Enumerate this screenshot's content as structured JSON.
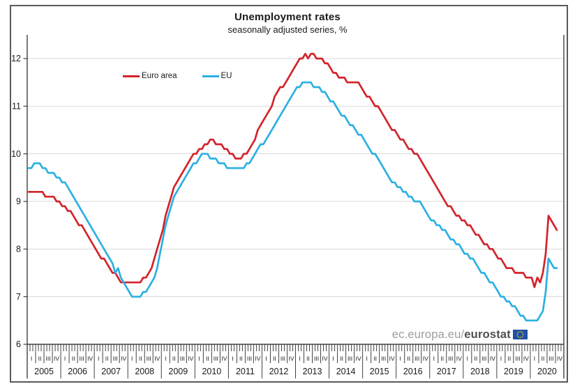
{
  "figure": {
    "title": "Unemployment rates",
    "subtitle": "seasonally adjusted series, %",
    "branding": {
      "url_prefix": "ec.europa.eu/",
      "url_bold": "eurostat",
      "flag_bg": "#1e50a5",
      "flag_stars": "#ffcc00"
    }
  },
  "chart_data": {
    "type": "line",
    "frequency": "monthly",
    "x_start": "2005-01",
    "x_end": "2020-10",
    "ylim": [
      6,
      12
    ],
    "y_ticks": [
      6,
      7,
      8,
      9,
      10,
      11,
      12
    ],
    "years": [
      "2005",
      "2006",
      "2007",
      "2008",
      "2009",
      "2010",
      "2011",
      "2012",
      "2013",
      "2014",
      "2015",
      "2016",
      "2017",
      "2018",
      "2019",
      "2020"
    ],
    "quarter_labels": [
      "I",
      "II",
      "III",
      "IV"
    ],
    "grid": true,
    "legend_position": "top-left-inside",
    "grid_color": "#d9d9d9",
    "axis_color": "#404040",
    "series": [
      {
        "name": "Euro area",
        "color": "#d2232a",
        "values": [
          9.2,
          9.2,
          9.2,
          9.2,
          9.2,
          9.2,
          9.1,
          9.1,
          9.1,
          9.1,
          9.0,
          9.0,
          8.9,
          8.9,
          8.8,
          8.8,
          8.7,
          8.6,
          8.5,
          8.5,
          8.4,
          8.3,
          8.2,
          8.1,
          8.0,
          7.9,
          7.8,
          7.8,
          7.7,
          7.6,
          7.5,
          7.5,
          7.4,
          7.3,
          7.3,
          7.3,
          7.3,
          7.3,
          7.3,
          7.3,
          7.3,
          7.4,
          7.4,
          7.5,
          7.6,
          7.8,
          8.0,
          8.2,
          8.4,
          8.7,
          8.9,
          9.1,
          9.3,
          9.4,
          9.5,
          9.6,
          9.7,
          9.8,
          9.9,
          10.0,
          10.0,
          10.1,
          10.1,
          10.2,
          10.2,
          10.3,
          10.3,
          10.2,
          10.2,
          10.2,
          10.1,
          10.1,
          10.0,
          10.0,
          9.9,
          9.9,
          9.9,
          10.0,
          10.0,
          10.1,
          10.2,
          10.3,
          10.5,
          10.6,
          10.7,
          10.8,
          10.9,
          11.0,
          11.2,
          11.3,
          11.4,
          11.4,
          11.5,
          11.6,
          11.7,
          11.8,
          11.9,
          12.0,
          12.0,
          12.1,
          12.0,
          12.1,
          12.1,
          12.0,
          12.0,
          12.0,
          11.9,
          11.9,
          11.8,
          11.7,
          11.7,
          11.6,
          11.6,
          11.6,
          11.5,
          11.5,
          11.5,
          11.5,
          11.5,
          11.4,
          11.3,
          11.2,
          11.2,
          11.1,
          11.0,
          11.0,
          10.9,
          10.8,
          10.7,
          10.6,
          10.5,
          10.5,
          10.4,
          10.3,
          10.3,
          10.2,
          10.1,
          10.1,
          10.0,
          10.0,
          9.9,
          9.8,
          9.7,
          9.6,
          9.5,
          9.4,
          9.3,
          9.2,
          9.1,
          9.0,
          8.9,
          8.9,
          8.8,
          8.7,
          8.7,
          8.6,
          8.6,
          8.5,
          8.5,
          8.4,
          8.3,
          8.3,
          8.2,
          8.1,
          8.1,
          8.0,
          8.0,
          7.9,
          7.8,
          7.8,
          7.7,
          7.6,
          7.6,
          7.6,
          7.5,
          7.5,
          7.5,
          7.5,
          7.4,
          7.4,
          7.4,
          7.2,
          7.4,
          7.3,
          7.5,
          7.9,
          8.7,
          8.6,
          8.5,
          8.4
        ]
      },
      {
        "name": "EU",
        "color": "#2bb0e2",
        "values": [
          9.7,
          9.7,
          9.8,
          9.8,
          9.8,
          9.7,
          9.7,
          9.6,
          9.6,
          9.6,
          9.5,
          9.5,
          9.4,
          9.4,
          9.3,
          9.2,
          9.1,
          9.0,
          8.9,
          8.8,
          8.7,
          8.6,
          8.5,
          8.4,
          8.3,
          8.2,
          8.1,
          8.0,
          7.9,
          7.8,
          7.7,
          7.5,
          7.6,
          7.4,
          7.3,
          7.2,
          7.1,
          7.0,
          7.0,
          7.0,
          7.0,
          7.1,
          7.1,
          7.2,
          7.3,
          7.4,
          7.6,
          7.9,
          8.2,
          8.5,
          8.7,
          8.9,
          9.1,
          9.2,
          9.3,
          9.4,
          9.5,
          9.6,
          9.7,
          9.8,
          9.8,
          9.9,
          10.0,
          10.0,
          10.0,
          9.9,
          9.9,
          9.9,
          9.8,
          9.8,
          9.8,
          9.7,
          9.7,
          9.7,
          9.7,
          9.7,
          9.7,
          9.7,
          9.8,
          9.8,
          9.9,
          10.0,
          10.1,
          10.2,
          10.2,
          10.3,
          10.4,
          10.5,
          10.6,
          10.7,
          10.8,
          10.9,
          11.0,
          11.1,
          11.2,
          11.3,
          11.4,
          11.4,
          11.5,
          11.5,
          11.5,
          11.5,
          11.4,
          11.4,
          11.4,
          11.3,
          11.3,
          11.2,
          11.1,
          11.1,
          11.0,
          10.9,
          10.8,
          10.8,
          10.7,
          10.6,
          10.6,
          10.5,
          10.4,
          10.4,
          10.3,
          10.2,
          10.1,
          10.0,
          10.0,
          9.9,
          9.8,
          9.7,
          9.6,
          9.5,
          9.4,
          9.4,
          9.3,
          9.3,
          9.2,
          9.2,
          9.1,
          9.1,
          9.0,
          9.0,
          9.0,
          8.9,
          8.8,
          8.7,
          8.6,
          8.6,
          8.5,
          8.5,
          8.4,
          8.4,
          8.3,
          8.2,
          8.2,
          8.1,
          8.1,
          8.0,
          7.9,
          7.9,
          7.8,
          7.8,
          7.7,
          7.6,
          7.5,
          7.5,
          7.4,
          7.3,
          7.3,
          7.2,
          7.1,
          7.0,
          7.0,
          6.9,
          6.9,
          6.8,
          6.8,
          6.7,
          6.6,
          6.6,
          6.5,
          6.5,
          6.5,
          6.5,
          6.5,
          6.6,
          6.7,
          7.1,
          7.8,
          7.7,
          7.6,
          7.6
        ]
      }
    ]
  }
}
